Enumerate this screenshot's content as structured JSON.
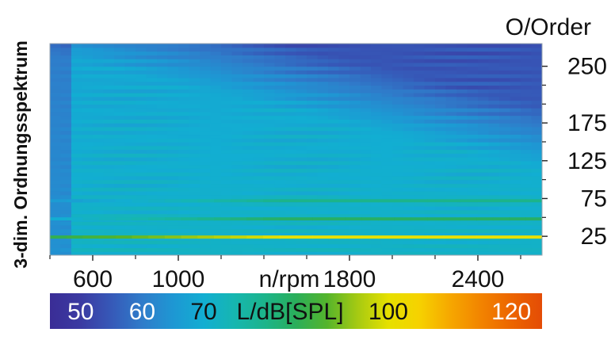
{
  "chart_data": {
    "type": "heatmap",
    "title": "3-dim. Ordnungsspektrum",
    "xlabel": "n/rpm",
    "ylabel": "O/Order",
    "x_range": [
      400,
      2700
    ],
    "y_range": [
      0,
      280
    ],
    "x_ticks": [
      {
        "value": 600,
        "label": "600"
      },
      {
        "value": 1000,
        "label": "1000"
      },
      {
        "value": 1800,
        "label": "1800"
      },
      {
        "value": 2400,
        "label": "2400"
      }
    ],
    "x_minor_ticks": [
      400,
      800,
      1200,
      1400,
      1600,
      2000,
      2200,
      2600
    ],
    "y_ticks": [
      {
        "value": 25,
        "label": "25"
      },
      {
        "value": 75,
        "label": "75"
      },
      {
        "value": 125,
        "label": "125"
      },
      {
        "value": 175,
        "label": "175"
      },
      {
        "value": 250,
        "label": "250"
      }
    ],
    "y_minor_ticks": [
      50,
      100,
      150,
      200,
      225
    ],
    "colorbar": {
      "label": "L/dB[SPL]",
      "range": [
        45,
        125
      ],
      "tick_labels": [
        {
          "value": 50,
          "label": "50"
        },
        {
          "value": 60,
          "label": "60"
        },
        {
          "value": 70,
          "label": "70"
        },
        {
          "value": 100,
          "label": "100"
        },
        {
          "value": 120,
          "label": "120"
        }
      ],
      "colors": [
        "#3a2d96",
        "#3b3aa2",
        "#3659b8",
        "#2f7cca",
        "#1e97d3",
        "#12aed2",
        "#16b6b0",
        "#1cb48a",
        "#2aae5a",
        "#54b42c",
        "#a6ca12",
        "#e6e000",
        "#f6d200",
        "#f6a800",
        "#f28400",
        "#ec6500",
        "#e44c06"
      ]
    },
    "z_description_levels_db": {
      "background_low_order": 68,
      "dark_region_high_order_high_rpm": 52,
      "strong_order_lines": [
        {
          "order": 24,
          "level_db": 100
        },
        {
          "order": 48,
          "level_db": 84
        },
        {
          "order": 72,
          "level_db": 80
        }
      ]
    }
  }
}
